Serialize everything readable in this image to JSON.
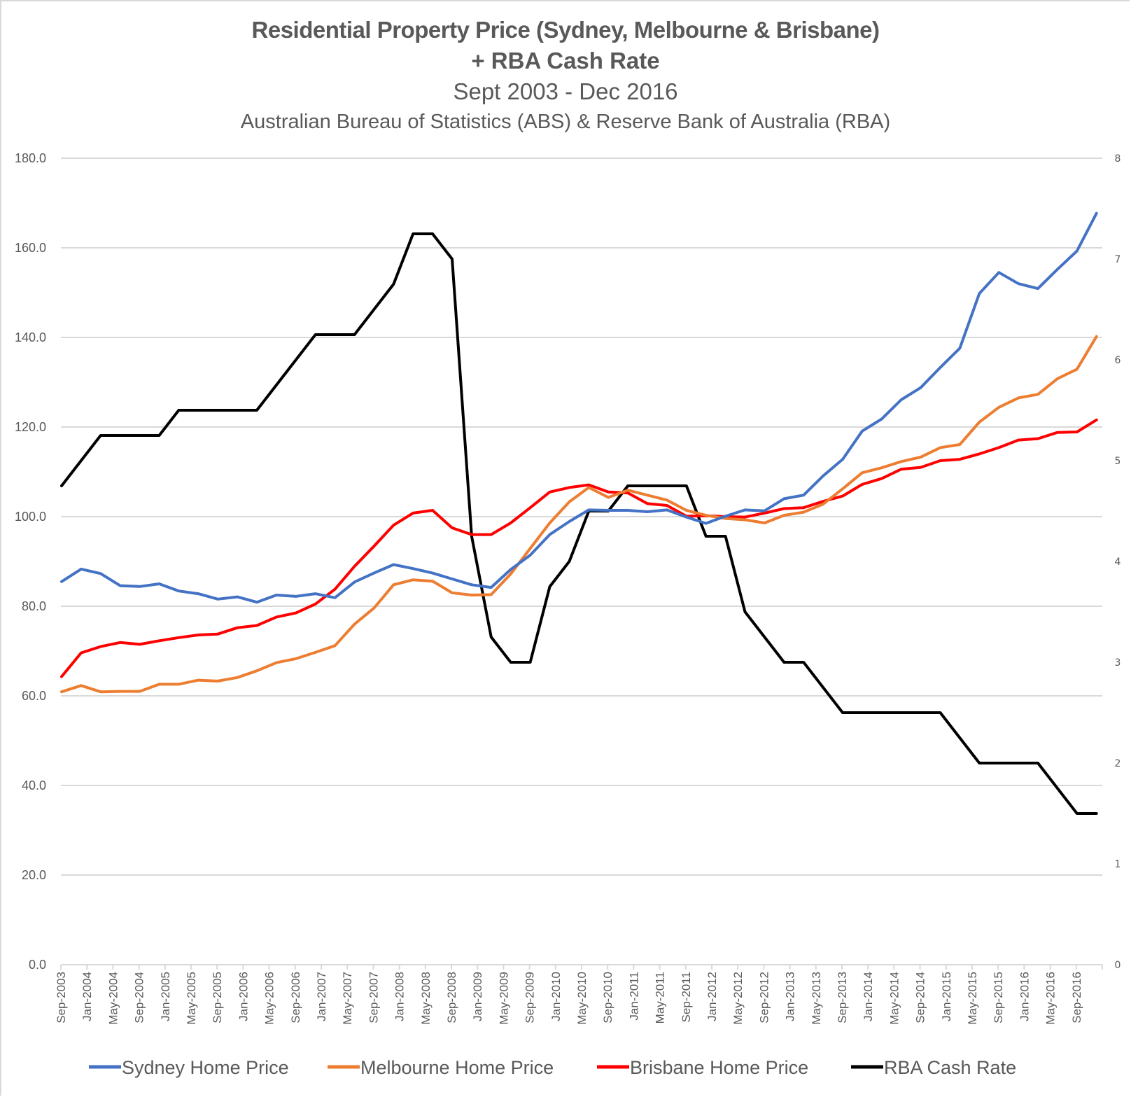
{
  "chart_data": {
    "type": "line",
    "title": "Residential Property Price (Sydney, Melbourne & Brisbane)",
    "title_line2": "+ RBA Cash Rate",
    "subtitle": "Sept 2003 - Dec 2016",
    "source": "Australian Bureau of Statistics (ABS) & Reserve Bank of Australia (RBA)",
    "x_start": "Sep-2003",
    "x_end": "Dec-2016",
    "x_frequency": "quarterly",
    "x_tick_labels": [
      "Sep-2003",
      "Jan-2004",
      "May-2004",
      "Sep-2004",
      "Jan-2005",
      "May-2005",
      "Sep-2005",
      "Jan-2006",
      "May-2006",
      "Sep-2006",
      "Jan-2007",
      "May-2007",
      "Sep-2007",
      "Jan-2008",
      "May-2008",
      "Sep-2008",
      "Jan-2009",
      "May-2009",
      "Sep-2009",
      "Jan-2010",
      "May-2010",
      "Sep-2010",
      "Jan-2011",
      "May-2011",
      "Sep-2011",
      "Jan-2012",
      "May-2012",
      "Sep-2012",
      "Jan-2013",
      "May-2013",
      "Sep-2013",
      "Jan-2014",
      "May-2014",
      "Sep-2014",
      "Jan-2015",
      "May-2015",
      "Sep-2015",
      "Jan-2016",
      "May-2016",
      "Sep-2016"
    ],
    "y_left": {
      "ylim": [
        0,
        180
      ],
      "ticks": [
        "0.0",
        "20.0",
        "40.0",
        "60.0",
        "80.0",
        "100.0",
        "120.0",
        "140.0",
        "160.0",
        "180.0"
      ]
    },
    "y_right": {
      "ylim": [
        0,
        8
      ],
      "ticks": [
        "0",
        "1",
        "2",
        "3",
        "4",
        "5",
        "6",
        "7",
        "8"
      ]
    },
    "grid": true,
    "legend_position": "bottom",
    "series": [
      {
        "name": "Sydney Home Price",
        "axis": "left",
        "color": "#4472c4",
        "values": [
          85.5,
          88.3,
          87.3,
          84.6,
          84.4,
          85.0,
          83.4,
          82.8,
          81.6,
          82.1,
          80.9,
          82.5,
          82.2,
          82.8,
          81.9,
          85.4,
          87.4,
          89.3,
          88.4,
          87.4,
          86.1,
          84.8,
          84.2,
          88.2,
          91.4,
          96.0,
          98.9,
          101.5,
          101.4,
          101.4,
          101.1,
          101.5,
          99.9,
          98.5,
          100.1,
          101.5,
          101.3,
          104.0,
          104.8,
          109.1,
          112.8,
          119.1,
          121.8,
          126.1,
          128.8,
          133.3,
          137.6,
          149.8,
          154.5,
          152.0,
          150.9,
          155.2,
          159.3,
          167.7
        ]
      },
      {
        "name": "Melbourne Home Price",
        "axis": "left",
        "color": "#ed7d31",
        "values": [
          60.9,
          62.3,
          60.9,
          61.0,
          61.0,
          62.6,
          62.6,
          63.5,
          63.3,
          64.1,
          65.6,
          67.4,
          68.3,
          69.7,
          71.2,
          76.0,
          79.6,
          84.8,
          85.9,
          85.6,
          83.0,
          82.5,
          82.6,
          87.2,
          92.9,
          98.6,
          103.3,
          106.5,
          104.3,
          105.9,
          104.8,
          103.7,
          101.4,
          100.3,
          99.6,
          99.3,
          98.6,
          100.3,
          101.0,
          102.8,
          106.2,
          109.8,
          110.9,
          112.3,
          113.3,
          115.4,
          116.1,
          121.1,
          124.4,
          126.5,
          127.3,
          130.8,
          132.9,
          140.2
        ]
      },
      {
        "name": "Brisbane Home Price",
        "axis": "left",
        "color": "#ff0000",
        "values": [
          64.3,
          69.6,
          71.0,
          71.9,
          71.5,
          72.3,
          73.0,
          73.6,
          73.8,
          75.2,
          75.7,
          77.6,
          78.5,
          80.5,
          83.8,
          88.9,
          93.4,
          98.1,
          100.8,
          101.4,
          97.5,
          96.0,
          96.0,
          98.6,
          102.0,
          105.5,
          106.5,
          107.1,
          105.5,
          105.3,
          102.9,
          102.5,
          100.1,
          100.2,
          100.0,
          99.9,
          100.8,
          101.8,
          102.0,
          103.4,
          104.6,
          107.2,
          108.5,
          110.6,
          111.0,
          112.5,
          112.8,
          114.0,
          115.4,
          117.1,
          117.4,
          118.8,
          118.9,
          121.6
        ]
      },
      {
        "name": "RBA Cash Rate",
        "axis": "right",
        "color": "#000000",
        "values": [
          4.75,
          5.0,
          5.25,
          5.25,
          5.25,
          5.25,
          5.5,
          5.5,
          5.5,
          5.5,
          5.5,
          5.75,
          6.0,
          6.25,
          6.25,
          6.25,
          6.5,
          6.75,
          7.25,
          7.25,
          7.0,
          4.25,
          3.25,
          3.0,
          3.0,
          3.75,
          4.0,
          4.5,
          4.5,
          4.75,
          4.75,
          4.75,
          4.75,
          4.25,
          4.25,
          3.5,
          3.25,
          3.0,
          3.0,
          2.75,
          2.5,
          2.5,
          2.5,
          2.5,
          2.5,
          2.5,
          2.25,
          2.0,
          2.0,
          2.0,
          2.0,
          1.75,
          1.5,
          1.5
        ]
      }
    ]
  }
}
